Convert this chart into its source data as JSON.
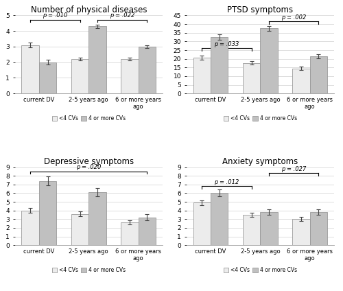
{
  "subplots": [
    {
      "title": "Number of physical diseases",
      "ylim": [
        0,
        5
      ],
      "yticks": [
        0,
        1,
        2,
        3,
        4,
        5
      ],
      "groups": [
        "current DV",
        "2-5 years ago",
        "6 or more years\nago"
      ],
      "bar1_values": [
        3.1,
        2.2,
        2.2
      ],
      "bar1_errors": [
        0.15,
        0.1,
        0.1
      ],
      "bar2_values": [
        2.0,
        4.3,
        3.0
      ],
      "bar2_errors": [
        0.15,
        0.12,
        0.1
      ],
      "sig_lines": [
        {
          "grp1": 0,
          "grp2": 1,
          "side1": "left",
          "side2": "left",
          "y": 4.72,
          "label": "p = .010"
        },
        {
          "grp1": 1,
          "grp2": 2,
          "side1": "right",
          "side2": "right",
          "y": 4.72,
          "label": "p = .022"
        }
      ]
    },
    {
      "title": "PTSD symptoms",
      "ylim": [
        0,
        45
      ],
      "yticks": [
        0,
        5,
        10,
        15,
        20,
        25,
        30,
        35,
        40,
        45
      ],
      "groups": [
        "current DV",
        "2-5 years ago",
        "6 or more years\nago"
      ],
      "bar1_values": [
        20.5,
        17.5,
        14.5
      ],
      "bar1_errors": [
        1.2,
        1.0,
        1.0
      ],
      "bar2_values": [
        32.5,
        37.5,
        21.5
      ],
      "bar2_errors": [
        1.5,
        1.5,
        1.2
      ],
      "sig_lines": [
        {
          "grp1": 0,
          "grp2": 1,
          "side1": "left",
          "side2": "left",
          "y": 26.0,
          "label": "p = .033"
        },
        {
          "grp1": 1,
          "grp2": 2,
          "side1": "right",
          "side2": "right",
          "y": 41.5,
          "label": "p = .002"
        }
      ]
    },
    {
      "title": "Depressive symptoms",
      "ylim": [
        0,
        9
      ],
      "yticks": [
        0,
        1,
        2,
        3,
        4,
        5,
        6,
        7,
        8,
        9
      ],
      "groups": [
        "current DV",
        "2-5 years ago",
        "6 or more years\nago"
      ],
      "bar1_values": [
        4.0,
        3.6,
        2.6
      ],
      "bar1_errors": [
        0.3,
        0.3,
        0.25
      ],
      "bar2_values": [
        7.4,
        6.1,
        3.2
      ],
      "bar2_errors": [
        0.5,
        0.45,
        0.35
      ],
      "sig_lines": [
        {
          "grp1": 0,
          "grp2": 2,
          "side1": "left",
          "side2": "right",
          "y": 8.5,
          "label": "p = .020"
        }
      ]
    },
    {
      "title": "Anxiety symptoms",
      "ylim": [
        0,
        9
      ],
      "yticks": [
        0,
        1,
        2,
        3,
        4,
        5,
        6,
        7,
        8,
        9
      ],
      "groups": [
        "current DV",
        "2-5 years ago",
        "6 or more years\nago"
      ],
      "bar1_values": [
        4.9,
        3.5,
        3.0
      ],
      "bar1_errors": [
        0.3,
        0.25,
        0.25
      ],
      "bar2_values": [
        6.0,
        3.8,
        3.8
      ],
      "bar2_errors": [
        0.4,
        0.3,
        0.3
      ],
      "sig_lines": [
        {
          "grp1": 0,
          "grp2": 1,
          "side1": "left",
          "side2": "left",
          "y": 6.8,
          "label": "p = .012"
        },
        {
          "grp1": 1,
          "grp2": 2,
          "side1": "right",
          "side2": "right",
          "y": 8.3,
          "label": "p = .027"
        }
      ]
    }
  ],
  "bar1_color": "#ececec",
  "bar2_color": "#c0c0c0",
  "bar_edge_color": "#999999",
  "bar_width": 0.35,
  "legend_labels": [
    "<4 CVs",
    "4 or more CVs"
  ],
  "background_color": "#ffffff",
  "grid_color": "#d8d8d8"
}
